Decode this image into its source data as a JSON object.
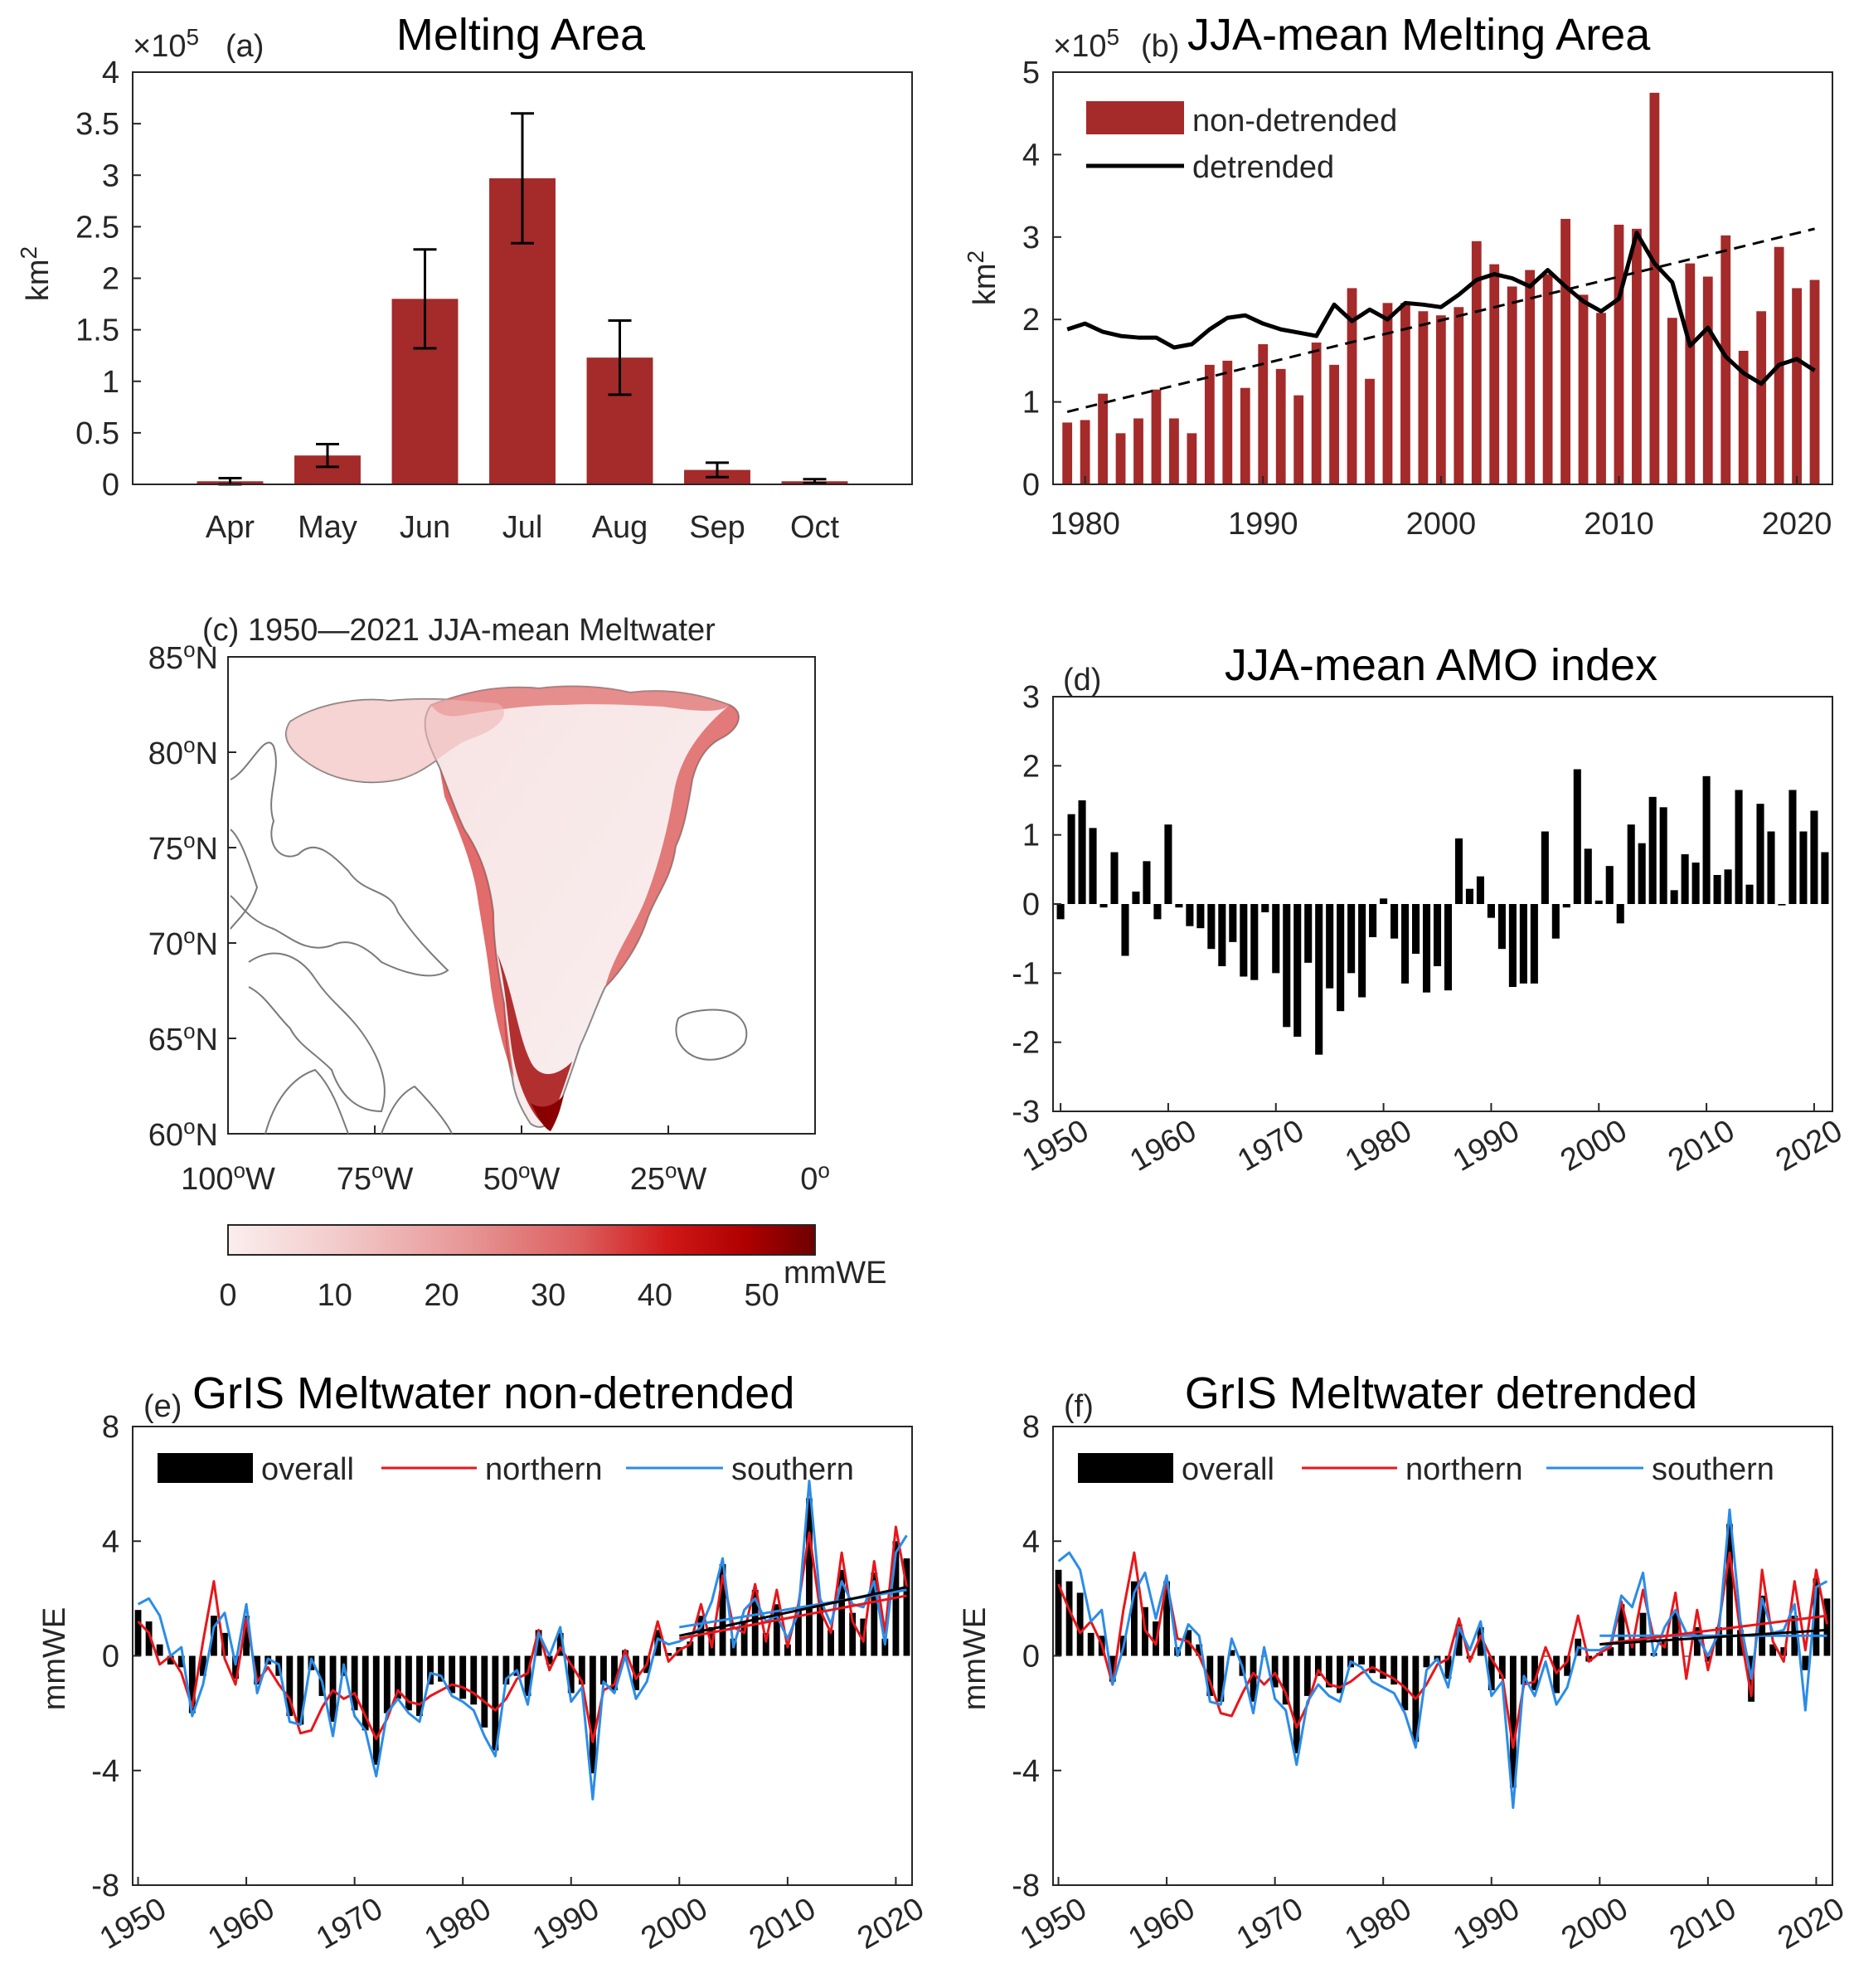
{
  "chart_data": [
    {
      "panel": "a",
      "type": "bar",
      "title": "Melting Area",
      "panel_label": "(a)",
      "scale_label": "×10",
      "scale_exponent": "5",
      "ylabel": "km",
      "ylabel_exponent": "2",
      "categories": [
        "Apr",
        "May",
        "Jun",
        "Jul",
        "Aug",
        "Sep",
        "Oct"
      ],
      "values": [
        0.03,
        0.28,
        1.8,
        2.97,
        1.23,
        0.14,
        0.03
      ],
      "errors": [
        0.03,
        0.11,
        0.48,
        0.63,
        0.36,
        0.07,
        0.02
      ],
      "ylim": [
        0,
        4
      ],
      "yticks": [
        "0",
        "0.5",
        "1",
        "1.5",
        "2",
        "2.5",
        "3",
        "3.5",
        "4"
      ],
      "color": "#a52a2a"
    },
    {
      "panel": "b",
      "type": "bar",
      "title": "JJA-mean Melting Area",
      "panel_label": "(b)",
      "scale_label": "×10",
      "scale_exponent": "5",
      "ylabel": "km",
      "ylabel_exponent": "2",
      "legend": [
        "non-detrended",
        "detrended"
      ],
      "x_start": 1979,
      "values": [
        0.75,
        0.78,
        1.1,
        0.62,
        0.8,
        1.15,
        0.8,
        0.62,
        1.45,
        1.5,
        1.17,
        1.7,
        1.4,
        1.08,
        1.72,
        1.45,
        2.38,
        1.28,
        2.2,
        2.2,
        2.1,
        2.05,
        2.15,
        2.95,
        2.67,
        2.4,
        2.6,
        2.55,
        3.22,
        2.3,
        2.08,
        3.15,
        3.1,
        4.75,
        2.02,
        2.68,
        2.52,
        3.02,
        1.62,
        2.1,
        2.88,
        2.38,
        2.48
      ],
      "detrended": [
        1.88,
        1.95,
        1.85,
        1.8,
        1.78,
        1.78,
        1.66,
        1.7,
        1.88,
        2.02,
        2.05,
        1.95,
        1.88,
        1.84,
        1.8,
        2.18,
        1.98,
        2.12,
        2.0,
        2.2,
        2.18,
        2.15,
        2.3,
        2.48,
        2.55,
        2.5,
        2.4,
        2.6,
        2.4,
        2.22,
        2.1,
        2.25,
        3.05,
        2.68,
        2.45,
        1.68,
        1.9,
        1.55,
        1.35,
        1.22,
        1.45,
        1.52,
        1.38
      ],
      "trend": [
        [
          1979,
          0.88
        ],
        [
          2021,
          3.1
        ]
      ],
      "xlim": [
        1978.2,
        2022
      ],
      "xticks": [
        "1980",
        "1990",
        "2000",
        "2010",
        "2020"
      ],
      "ylim": [
        0,
        5
      ],
      "yticks": [
        "0",
        "1",
        "2",
        "3",
        "4",
        "5"
      ],
      "color": "#a52a2a"
    },
    {
      "panel": "c",
      "type": "map",
      "title": "(c) 1950—2021 JJA-mean Meltwater",
      "lat_ticks": [
        "60",
        "65",
        "70",
        "75",
        "80",
        "85"
      ],
      "lat_suffix": "N",
      "lon_ticks": [
        "100",
        "75",
        "50",
        "25",
        "0"
      ],
      "lon_suffix": "W",
      "deg": "o",
      "colorbar_label": "mmWE",
      "colorbar_ticks": [
        "0",
        "10",
        "20",
        "30",
        "40",
        "50"
      ],
      "colorbar_range": [
        0,
        55
      ]
    },
    {
      "panel": "d",
      "type": "bar",
      "title": "JJA-mean AMO index",
      "panel_label": "(d)",
      "x_start": 1950,
      "values": [
        -0.22,
        1.3,
        1.5,
        1.1,
        -0.05,
        0.75,
        -0.75,
        0.18,
        0.62,
        -0.22,
        1.15,
        -0.05,
        -0.32,
        -0.35,
        -0.65,
        -0.9,
        -0.55,
        -1.05,
        -1.1,
        -0.12,
        -1.0,
        -1.78,
        -1.92,
        -0.85,
        -2.18,
        -1.22,
        -1.55,
        -1.0,
        -1.35,
        -0.48,
        0.08,
        -0.5,
        -1.15,
        -0.72,
        -1.28,
        -0.9,
        -1.25,
        0.95,
        0.22,
        0.4,
        -0.2,
        -0.65,
        -1.2,
        -1.15,
        -1.15,
        1.05,
        -0.5,
        -0.05,
        1.95,
        0.8,
        0.05,
        0.55,
        -0.28,
        1.15,
        0.88,
        1.55,
        1.4,
        0.2,
        0.72,
        0.6,
        1.85,
        0.42,
        0.5,
        1.65,
        0.28,
        1.45,
        1.05,
        -0.02,
        1.65,
        1.05,
        1.35,
        0.75
      ],
      "xlim": [
        1949.3,
        2021.7
      ],
      "xticks": [
        "1950",
        "1960",
        "1970",
        "1980",
        "1990",
        "2000",
        "2010",
        "2020"
      ],
      "ylim": [
        -3,
        3
      ],
      "yticks": [
        "-3",
        "-2",
        "-1",
        "0",
        "1",
        "2",
        "3"
      ],
      "color": "#000000"
    },
    {
      "panel": "e",
      "type": "bar",
      "title": "GrIS Meltwater non-detrended",
      "panel_label": "(e)",
      "ylabel": "mmWE",
      "legend": [
        "overall",
        "northern",
        "southern"
      ],
      "x_start": 1950,
      "overall": [
        1.6,
        1.2,
        0.4,
        -0.3,
        -0.4,
        -2.0,
        -0.7,
        1.4,
        0.8,
        -0.8,
        1.4,
        -1.0,
        -0.3,
        -0.7,
        -2.1,
        -2.4,
        -0.5,
        -1.4,
        -2.3,
        -0.7,
        -1.9,
        -2.6,
        -3.8,
        -2.0,
        -1.5,
        -1.9,
        -2.1,
        -1.0,
        -0.9,
        -1.3,
        -1.5,
        -1.7,
        -2.5,
        -3.3,
        -1.0,
        -0.7,
        -1.4,
        0.9,
        -0.3,
        0.8,
        -1.3,
        -1.0,
        -4.1,
        -1.0,
        -1.2,
        0.2,
        -1.2,
        -0.6,
        0.9,
        0.1,
        0.3,
        0.5,
        1.4,
        1.0,
        3.2,
        0.6,
        1.2,
        2.3,
        0.8,
        1.8,
        0.4,
        1.7,
        5.5,
        1.8,
        0.9,
        3.0,
        1.5,
        1.3,
        2.9,
        0.6,
        4.0,
        3.4
      ],
      "northern": [
        1.2,
        0.8,
        -0.3,
        0.0,
        -0.6,
        -1.8,
        0.5,
        2.6,
        -0.1,
        -1.0,
        1.3,
        -0.9,
        -0.4,
        -1.0,
        -1.5,
        -2.7,
        -2.6,
        -1.8,
        -1.2,
        -1.5,
        -1.3,
        -2.1,
        -2.9,
        -2.2,
        -1.2,
        -1.6,
        -1.7,
        -1.4,
        -1.2,
        -1.0,
        -1.1,
        -1.3,
        -1.6,
        -1.9,
        -1.5,
        -0.8,
        -0.6,
        0.9,
        -0.5,
        0.3,
        -0.3,
        -0.9,
        -3.0,
        -1.2,
        -1.0,
        0.2,
        -0.8,
        -0.3,
        1.2,
        -0.2,
        0.2,
        0.4,
        1.8,
        0.3,
        2.8,
        1.0,
        0.8,
        2.5,
        0.5,
        2.3,
        0.3,
        1.8,
        4.3,
        1.6,
        0.8,
        3.6,
        1.2,
        0.5,
        3.3,
        0.8,
        4.5,
        2.4
      ],
      "southern": [
        1.8,
        2.0,
        1.4,
        0.0,
        0.3,
        -2.1,
        -1.0,
        1.0,
        1.5,
        -0.3,
        1.8,
        -1.3,
        -0.1,
        -0.3,
        -2.3,
        -2.4,
        -0.1,
        -0.9,
        -2.8,
        -0.3,
        -2.1,
        -2.6,
        -4.2,
        -2.0,
        -1.5,
        -2.0,
        -2.3,
        -0.6,
        -0.7,
        -1.4,
        -1.6,
        -1.9,
        -2.8,
        -3.5,
        -0.8,
        -0.5,
        -1.7,
        0.8,
        0.0,
        1.0,
        -1.6,
        -1.1,
        -5.0,
        -0.9,
        -1.3,
        0.0,
        -1.5,
        -0.9,
        0.6,
        0.4,
        0.5,
        0.7,
        1.0,
        1.9,
        3.4,
        0.3,
        1.6,
        2.0,
        1.2,
        1.4,
        0.6,
        1.5,
        6.1,
        2.0,
        1.1,
        2.6,
        1.8,
        1.7,
        2.6,
        0.4,
        3.6,
        4.2
      ],
      "trend_overall": [
        [
          2000,
          0.7
        ],
        [
          2021,
          2.4
        ]
      ],
      "trend_northern": [
        [
          2000,
          0.6
        ],
        [
          2021,
          2.1
        ]
      ],
      "trend_southern": [
        [
          2000,
          1.0
        ],
        [
          2021,
          2.3
        ]
      ],
      "xlim": [
        1949.5,
        2021.5
      ],
      "xticks": [
        "1950",
        "1960",
        "1970",
        "1980",
        "1990",
        "2000",
        "2010",
        "2020"
      ],
      "ylim": [
        -8,
        8
      ],
      "yticks": [
        "-8",
        "-4",
        "0",
        "4",
        "8"
      ]
    },
    {
      "panel": "f",
      "type": "bar",
      "title": "GrIS Meltwater detrended",
      "panel_label": "(f)",
      "ylabel": "mmWE",
      "legend": [
        "overall",
        "northern",
        "southern"
      ],
      "x_start": 1950,
      "overall": [
        3.0,
        2.6,
        2.2,
        0.8,
        0.7,
        -0.9,
        0.7,
        2.6,
        1.7,
        1.2,
        2.6,
        0.3,
        0.9,
        0.4,
        -1.4,
        -1.6,
        0.2,
        -0.7,
        -1.6,
        0.0,
        -1.1,
        -1.7,
        -3.4,
        -1.4,
        -0.7,
        -1.1,
        -1.3,
        -0.4,
        -0.3,
        -0.6,
        -0.8,
        -1.0,
        -1.9,
        -3.0,
        -0.4,
        -0.2,
        -0.8,
        1.1,
        -0.1,
        1.0,
        -1.2,
        -0.8,
        -4.6,
        -1.0,
        -1.2,
        0.0,
        -1.3,
        -0.7,
        0.6,
        -0.2,
        0.1,
        0.3,
        1.8,
        0.5,
        1.5,
        0.1,
        0.5,
        1.5,
        0.0,
        1.0,
        -0.2,
        1.0,
        4.6,
        0.9,
        -1.6,
        2.1,
        0.4,
        0.3,
        1.4,
        -0.5,
        2.7,
        2.0
      ],
      "northern": [
        2.5,
        1.6,
        0.8,
        1.2,
        0.4,
        -1.0,
        1.6,
        3.6,
        0.9,
        0.4,
        2.6,
        0.6,
        0.5,
        0.0,
        -0.9,
        -2.0,
        -2.1,
        -1.3,
        -0.6,
        -1.0,
        -0.6,
        -1.3,
        -2.5,
        -1.7,
        -0.5,
        -1.0,
        -1.1,
        -0.9,
        -0.6,
        -0.4,
        -0.6,
        -0.8,
        -1.1,
        -1.5,
        -1.0,
        -0.3,
        -0.1,
        1.3,
        -0.2,
        0.7,
        -0.1,
        -0.7,
        -3.2,
        -1.0,
        -0.9,
        0.3,
        -0.6,
        -0.2,
        1.4,
        -0.2,
        0.1,
        0.3,
        1.9,
        0.3,
        2.3,
        0.6,
        0.3,
        2.2,
        -0.8,
        1.6,
        -0.5,
        1.1,
        3.6,
        0.8,
        -1.4,
        3.0,
        0.5,
        -0.2,
        2.6,
        0.2,
        3.0,
        1.1
      ],
      "southern": [
        3.3,
        3.6,
        3.0,
        1.2,
        1.6,
        -1.0,
        0.3,
        2.2,
        2.9,
        1.3,
        2.8,
        0.0,
        1.1,
        0.7,
        -1.6,
        -1.7,
        0.6,
        -0.4,
        -2.0,
        0.3,
        -1.5,
        -1.9,
        -3.8,
        -1.6,
        -1.0,
        -1.4,
        -1.6,
        -0.2,
        -0.4,
        -0.9,
        -1.1,
        -1.3,
        -2.0,
        -3.2,
        -0.5,
        -0.1,
        -1.1,
        1.0,
        0.2,
        1.2,
        -1.4,
        -0.9,
        -5.3,
        -0.7,
        -1.4,
        -0.2,
        -1.7,
        -1.1,
        0.3,
        0.2,
        0.2,
        0.4,
        2.1,
        1.7,
        2.9,
        0.0,
        1.0,
        1.6,
        0.8,
        0.7,
        0.0,
        0.8,
        5.1,
        1.2,
        -0.8,
        2.0,
        0.8,
        0.9,
        1.8,
        -1.9,
        2.4,
        2.6
      ],
      "trend_overall": [
        [
          2000,
          0.4
        ],
        [
          2021,
          0.9
        ]
      ],
      "trend_northern": [
        [
          2000,
          0.4
        ],
        [
          2021,
          1.4
        ]
      ],
      "trend_southern": [
        [
          2000,
          0.7
        ],
        [
          2021,
          0.7
        ]
      ],
      "xlim": [
        1949.5,
        2021.5
      ],
      "xticks": [
        "1950",
        "1960",
        "1970",
        "1980",
        "1990",
        "2000",
        "2010",
        "2020"
      ],
      "ylim": [
        -8,
        8
      ],
      "yticks": [
        "-8",
        "-4",
        "0",
        "4",
        "8"
      ]
    }
  ]
}
